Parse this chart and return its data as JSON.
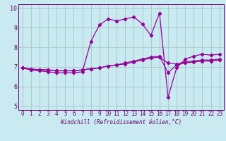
{
  "xlabel": "Windchill (Refroidissement éolien,°C)",
  "background_color": "#c8eaf0",
  "grid_color": "#aacccc",
  "line_color": "#990099",
  "spine_color": "#6a006a",
  "xlim": [
    -0.5,
    23.5
  ],
  "ylim": [
    4.8,
    10.2
  ],
  "yticks": [
    5,
    6,
    7,
    8,
    9,
    10
  ],
  "xticks": [
    0,
    1,
    2,
    3,
    4,
    5,
    6,
    7,
    8,
    9,
    10,
    11,
    12,
    13,
    14,
    15,
    16,
    17,
    18,
    19,
    20,
    21,
    22,
    23
  ],
  "series1_x": [
    0,
    1,
    2,
    3,
    4,
    5,
    6,
    7,
    8,
    9,
    10,
    11,
    12,
    13,
    14,
    15,
    16,
    17,
    18,
    19,
    20,
    21,
    22,
    23
  ],
  "series1_y": [
    6.95,
    6.85,
    6.85,
    6.85,
    6.8,
    6.8,
    6.8,
    6.85,
    6.9,
    6.95,
    7.05,
    7.1,
    7.2,
    7.3,
    7.4,
    7.5,
    7.55,
    6.7,
    7.1,
    7.2,
    7.25,
    7.3,
    7.3,
    7.35
  ],
  "series2_x": [
    0,
    1,
    2,
    3,
    4,
    5,
    6,
    7,
    8,
    9,
    10,
    11,
    12,
    13,
    14,
    15,
    16,
    17,
    18,
    19,
    20,
    21,
    22,
    23
  ],
  "series2_y": [
    6.95,
    6.85,
    6.8,
    6.75,
    6.7,
    6.7,
    6.7,
    6.75,
    8.3,
    9.15,
    9.45,
    9.35,
    9.45,
    9.55,
    9.2,
    8.6,
    9.75,
    5.45,
    6.95,
    7.4,
    7.55,
    7.65,
    7.6,
    7.65
  ],
  "series3_x": [
    0,
    1,
    2,
    3,
    4,
    5,
    6,
    7,
    8,
    9,
    10,
    11,
    12,
    13,
    14,
    15,
    16,
    17,
    18,
    19,
    20,
    21,
    22,
    23
  ],
  "series3_y": [
    6.95,
    6.9,
    6.85,
    6.85,
    6.8,
    6.8,
    6.8,
    6.85,
    6.9,
    6.95,
    7.05,
    7.1,
    7.15,
    7.25,
    7.35,
    7.45,
    7.5,
    7.2,
    7.15,
    7.25,
    7.3,
    7.35,
    7.35,
    7.4
  ],
  "tick_fontsize": 5.5,
  "xlabel_fontsize": 5.5
}
